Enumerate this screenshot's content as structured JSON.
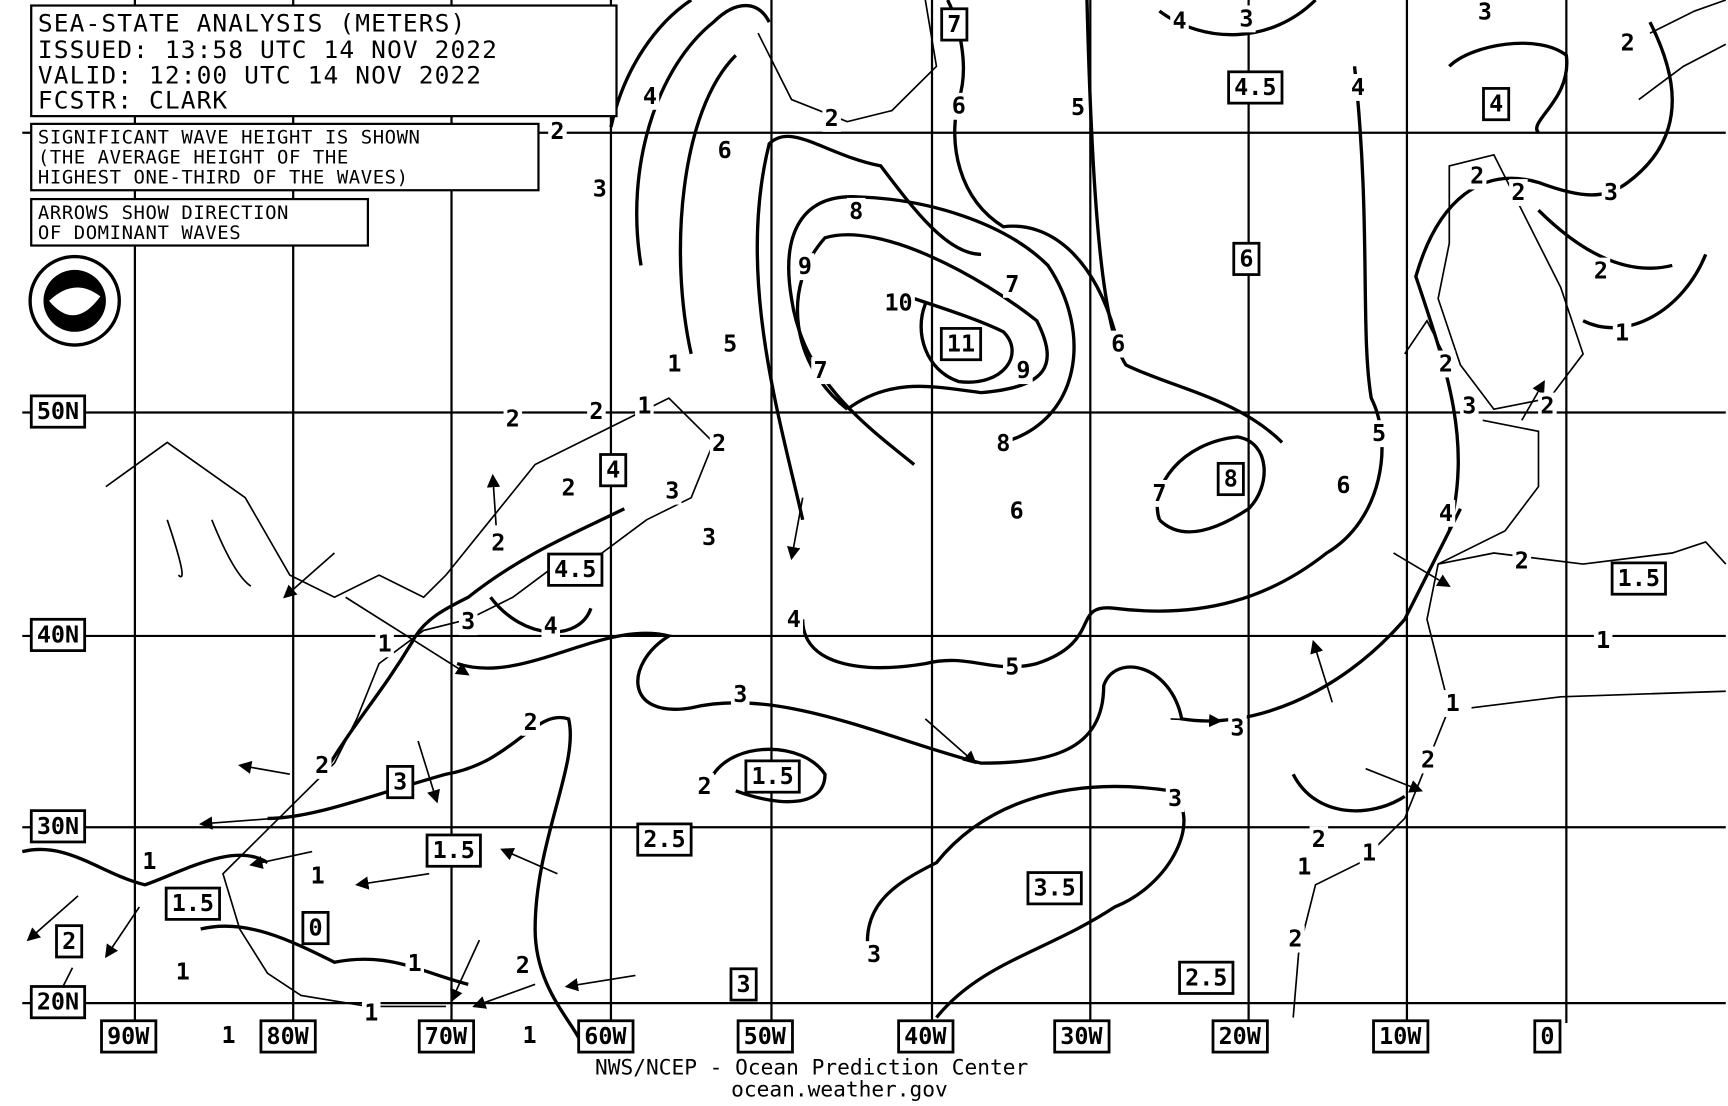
{
  "header": {
    "lines": [
      "SEA-STATE ANALYSIS (METERS)",
      "ISSUED: 13:58 UTC 14 NOV 2022",
      "VALID:  12:00 UTC 14 NOV 2022",
      "FCSTR:  CLARK"
    ]
  },
  "notes": [
    [
      "SIGNIFICANT WAVE HEIGHT IS SHOWN",
      "(THE AVERAGE HEIGHT OF THE",
      "HIGHEST ONE-THIRD OF THE WAVES)"
    ],
    [
      "ARROWS SHOW DIRECTION",
      "OF DOMINANT WAVES"
    ]
  ],
  "latitude_labels": [
    "50N",
    "40N",
    "30N",
    "20N"
  ],
  "longitude_labels": [
    "90W",
    "80W",
    "70W",
    "60W",
    "50W",
    "40W",
    "30W",
    "20W",
    "10W",
    "0"
  ],
  "boxed_labels": [
    "7",
    "4.5",
    "4",
    "6",
    "11",
    "8",
    "4",
    "4.5",
    "1.5",
    "3",
    "1.5",
    "2.5",
    "1.5",
    "1.5",
    "0",
    "2",
    "3.5",
    "2.5",
    "3"
  ],
  "contour_labels": [
    "4",
    "6",
    "3",
    "2",
    "8",
    "9",
    "10",
    "7",
    "9",
    "5",
    "7",
    "8",
    "6",
    "6",
    "5",
    "6",
    "4",
    "4",
    "3",
    "3",
    "2",
    "3",
    "2",
    "1",
    "5",
    "6",
    "7",
    "4",
    "3",
    "2",
    "2",
    "3",
    "3",
    "2",
    "4",
    "5",
    "3",
    "3",
    "3",
    "3",
    "2",
    "2",
    "2",
    "2",
    "2",
    "2",
    "1",
    "1",
    "1",
    "3",
    "4",
    "1",
    "2",
    "1",
    "1",
    "1",
    "1",
    "1",
    "1",
    "1",
    "2",
    "2",
    "2",
    "2",
    "1",
    "1",
    "2",
    "2",
    "2",
    "2",
    "1"
  ],
  "footer": [
    "NWS/NCEP - Ocean Prediction Center",
    "ocean.weather.gov"
  ]
}
